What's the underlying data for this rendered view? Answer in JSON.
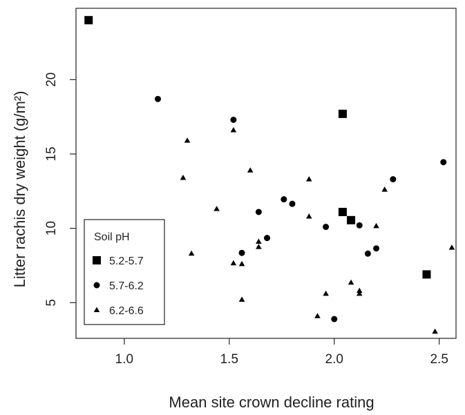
{
  "chart_data": {
    "type": "scatter",
    "title": "",
    "xlabel": "Mean site crown decline rating",
    "ylabel": "Litter rachis dry weight (g/m²)",
    "xlim": [
      0.77,
      2.58
    ],
    "ylim": [
      2.6,
      24.8
    ],
    "xticks": [
      1.0,
      1.5,
      2.0,
      2.5
    ],
    "xtick_labels": [
      "1.0",
      "1.5",
      "2.0",
      "2.5"
    ],
    "yticks": [
      5,
      10,
      15,
      20
    ],
    "ytick_labels": [
      "5",
      "10",
      "15",
      "20"
    ],
    "grid": false,
    "legend": {
      "title": "Soil pH",
      "position": "bottom-left"
    },
    "series": [
      {
        "name": "5.2-5.7",
        "marker": "square",
        "color": "#000000",
        "points": [
          {
            "x": 0.83,
            "y": 24.0
          },
          {
            "x": 2.04,
            "y": 17.7
          },
          {
            "x": 2.04,
            "y": 11.1
          },
          {
            "x": 2.08,
            "y": 10.55
          },
          {
            "x": 2.44,
            "y": 6.9
          }
        ]
      },
      {
        "name": "5.7-6.2",
        "marker": "circle",
        "color": "#000000",
        "points": [
          {
            "x": 1.16,
            "y": 18.7
          },
          {
            "x": 1.52,
            "y": 17.3
          },
          {
            "x": 1.64,
            "y": 11.1
          },
          {
            "x": 1.68,
            "y": 9.35
          },
          {
            "x": 1.56,
            "y": 8.35
          },
          {
            "x": 1.76,
            "y": 11.95
          },
          {
            "x": 1.8,
            "y": 11.65
          },
          {
            "x": 1.96,
            "y": 10.1
          },
          {
            "x": 2.12,
            "y": 10.2
          },
          {
            "x": 2.16,
            "y": 8.3
          },
          {
            "x": 2.2,
            "y": 8.65
          },
          {
            "x": 2.28,
            "y": 13.3
          },
          {
            "x": 2.52,
            "y": 14.45
          },
          {
            "x": 2.0,
            "y": 3.9
          }
        ]
      },
      {
        "name": "6.2-6.6",
        "marker": "triangle",
        "color": "#000000",
        "points": [
          {
            "x": 1.28,
            "y": 13.4
          },
          {
            "x": 1.3,
            "y": 15.9
          },
          {
            "x": 1.32,
            "y": 8.3
          },
          {
            "x": 1.44,
            "y": 11.3
          },
          {
            "x": 1.52,
            "y": 16.6
          },
          {
            "x": 1.52,
            "y": 7.65
          },
          {
            "x": 1.56,
            "y": 7.6
          },
          {
            "x": 1.56,
            "y": 5.2
          },
          {
            "x": 1.6,
            "y": 13.9
          },
          {
            "x": 1.64,
            "y": 9.1
          },
          {
            "x": 1.64,
            "y": 8.75
          },
          {
            "x": 1.88,
            "y": 13.3
          },
          {
            "x": 1.88,
            "y": 10.8
          },
          {
            "x": 1.92,
            "y": 4.1
          },
          {
            "x": 1.96,
            "y": 5.6
          },
          {
            "x": 2.08,
            "y": 6.35
          },
          {
            "x": 2.12,
            "y": 5.8
          },
          {
            "x": 2.12,
            "y": 5.6
          },
          {
            "x": 2.2,
            "y": 10.15
          },
          {
            "x": 2.24,
            "y": 12.6
          },
          {
            "x": 2.48,
            "y": 3.05
          },
          {
            "x": 2.56,
            "y": 8.7
          }
        ]
      }
    ]
  }
}
